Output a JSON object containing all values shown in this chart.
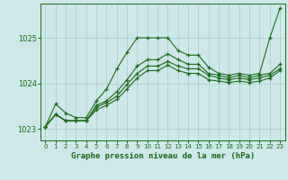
{
  "title": "",
  "xlabel": "Graphe pression niveau de la mer (hPa)",
  "ylabel": "",
  "ylim": [
    1022.75,
    1025.75
  ],
  "xlim": [
    -0.5,
    23.5
  ],
  "yticks": [
    1023,
    1024,
    1025
  ],
  "xticks": [
    0,
    1,
    2,
    3,
    4,
    5,
    6,
    7,
    8,
    9,
    10,
    11,
    12,
    13,
    14,
    15,
    16,
    17,
    18,
    19,
    20,
    21,
    22,
    23
  ],
  "background_color": "#cce8e8",
  "grid_color": "#aacccc",
  "line_color": "#1a6b1a",
  "lines": [
    [
      1023.05,
      1023.55,
      1023.35,
      1023.25,
      1023.25,
      1023.62,
      1023.88,
      1024.32,
      1024.68,
      1025.0,
      1025.0,
      1025.0,
      1025.0,
      1024.72,
      1024.62,
      1024.62,
      1024.35,
      1024.22,
      1024.18,
      1024.22,
      1024.18,
      1024.22,
      1025.0,
      1025.65
    ],
    [
      1023.05,
      1023.32,
      1023.18,
      1023.18,
      1023.18,
      1023.52,
      1023.62,
      1023.82,
      1024.08,
      1024.38,
      1024.52,
      1024.52,
      1024.65,
      1024.52,
      1024.42,
      1024.42,
      1024.22,
      1024.18,
      1024.12,
      1024.18,
      1024.12,
      1024.18,
      1024.22,
      1024.42
    ],
    [
      1023.05,
      1023.32,
      1023.18,
      1023.18,
      1023.18,
      1023.48,
      1023.58,
      1023.72,
      1023.98,
      1024.22,
      1024.38,
      1024.38,
      1024.48,
      1024.38,
      1024.32,
      1024.32,
      1024.18,
      1024.12,
      1024.08,
      1024.12,
      1024.08,
      1024.12,
      1024.18,
      1024.32
    ],
    [
      1023.05,
      1023.32,
      1023.18,
      1023.18,
      1023.18,
      1023.42,
      1023.52,
      1023.65,
      1023.88,
      1024.12,
      1024.28,
      1024.28,
      1024.4,
      1024.28,
      1024.22,
      1024.22,
      1024.08,
      1024.05,
      1024.02,
      1024.05,
      1024.02,
      1024.05,
      1024.12,
      1024.28
    ]
  ]
}
